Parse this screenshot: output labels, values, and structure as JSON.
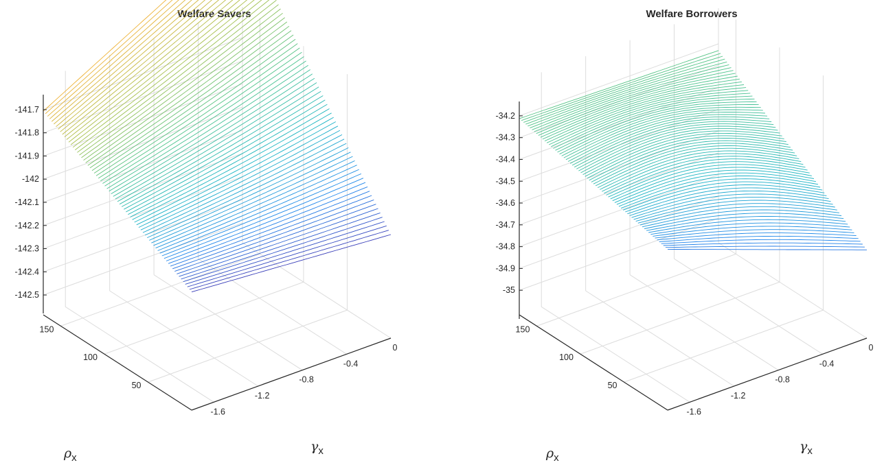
{
  "chart_data": [
    {
      "type": "surface",
      "title": "Welfare Savers",
      "xlabel": "γ",
      "xlabel_sub": "x",
      "ylabel": "ρ",
      "ylabel_sub": "x",
      "zlabel": "",
      "xlim": [
        -1.8,
        0
      ],
      "ylim": [
        0,
        170
      ],
      "zlim": [
        -142.55,
        -141.65
      ],
      "x_ticks": [
        "-1.6",
        "-1.2",
        "-0.8",
        "-0.4",
        "0"
      ],
      "x_tick_values": [
        -1.6,
        -1.2,
        -0.8,
        -0.4,
        0
      ],
      "y_ticks": [
        "50",
        "100",
        "150"
      ],
      "y_tick_values": [
        50,
        100,
        150
      ],
      "z_ticks": [
        "-141.7",
        "-141.8",
        "-141.9",
        "-142",
        "-142.1",
        "-142.2",
        "-142.3",
        "-142.4",
        "-142.5"
      ],
      "z_tick_values": [
        -141.7,
        -141.8,
        -141.9,
        -142,
        -142.1,
        -142.2,
        -142.3,
        -142.4,
        -142.5
      ],
      "surface_points": [
        {
          "gamma": -1.8,
          "rho": 0,
          "welfare": -142.48
        },
        {
          "gamma": -1.8,
          "rho": 170,
          "welfare": -142.07
        },
        {
          "gamma": 0,
          "rho": 170,
          "welfare": -141.55
        },
        {
          "gamma": 0,
          "rho": 0,
          "welfare": -142.55
        },
        {
          "gamma": -0.3,
          "rho": 40,
          "welfare": -142.33
        }
      ],
      "grid": true,
      "colormap": "parula",
      "colormap_colors": [
        "#3e26a8",
        "#1f84ec",
        "#18b4c4",
        "#4cc38a",
        "#a3c04b",
        "#f3b031",
        "#f9fb15"
      ]
    },
    {
      "type": "surface",
      "title": "Welfare Borrowers",
      "xlabel": "γ",
      "xlabel_sub": "x",
      "ylabel": "ρ",
      "ylabel_sub": "x",
      "zlabel": "",
      "xlim": [
        -1.8,
        0
      ],
      "ylim": [
        0,
        170
      ],
      "zlim": [
        -35.1,
        -34.15
      ],
      "x_ticks": [
        "-1.6",
        "-1.2",
        "-0.8",
        "-0.4",
        "0"
      ],
      "x_tick_values": [
        -1.6,
        -1.2,
        -0.8,
        -0.4,
        0
      ],
      "y_ticks": [
        "50",
        "100",
        "150"
      ],
      "y_tick_values": [
        50,
        100,
        150
      ],
      "z_ticks": [
        "-34.2",
        "-34.3",
        "-34.4",
        "-34.5",
        "-34.6",
        "-34.7",
        "-34.8",
        "-34.9",
        "-35"
      ],
      "z_tick_values": [
        -34.2,
        -34.3,
        -34.4,
        -34.5,
        -34.6,
        -34.7,
        -34.8,
        -34.9,
        -35
      ],
      "surface_points": [
        {
          "gamma": -1.8,
          "rho": 0,
          "welfare": -34.78
        },
        {
          "gamma": -1.8,
          "rho": 170,
          "welfare": -34.6
        },
        {
          "gamma": 0,
          "rho": 170,
          "welfare": -34.62
        },
        {
          "gamma": 0,
          "rho": 0,
          "welfare": -35.15
        },
        {
          "gamma": -0.9,
          "rho": 85,
          "welfare": -34.68
        }
      ],
      "grid": true,
      "colormap": "parula",
      "colormap_colors": [
        "#3e26a8",
        "#1f84ec",
        "#18b4c4",
        "#4cc38a",
        "#a3c04b",
        "#f3b031",
        "#f9fb15"
      ]
    }
  ]
}
